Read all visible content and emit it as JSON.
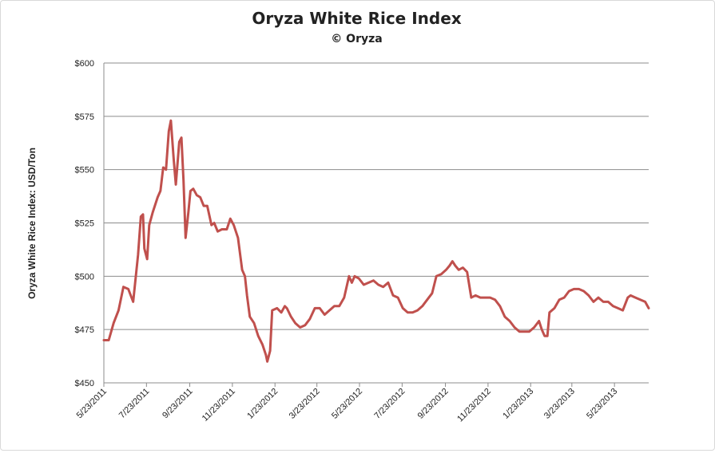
{
  "chart_data": {
    "type": "line",
    "title": "Oryza White Rice Index",
    "subtitle": "© Oryza",
    "ylabel": "Oryza White Rice Index: USD/Ton",
    "xlabel": "",
    "ylim": [
      450,
      600
    ],
    "y_ticks": [
      {
        "value": 450,
        "label": "$450"
      },
      {
        "value": 475,
        "label": "$475"
      },
      {
        "value": 500,
        "label": "$500"
      },
      {
        "value": 525,
        "label": "$525"
      },
      {
        "value": 550,
        "label": "$550"
      },
      {
        "value": 575,
        "label": "$575"
      },
      {
        "value": 600,
        "label": "$600"
      }
    ],
    "x_ticks": [
      "5/23/2011",
      "7/23/2011",
      "9/23/2011",
      "11/23/2011",
      "1/23/2012",
      "3/23/2012",
      "5/23/2012",
      "7/23/2012",
      "9/23/2012",
      "11/23/2012",
      "1/23/2013",
      "3/23/2013",
      "5/23/2013"
    ],
    "grid": "horizontal",
    "legend": "none",
    "colors": {
      "line": "#c0504d",
      "grid": "#8c8c8c",
      "axis": "#8c8c8c"
    },
    "series": [
      {
        "values": [
          [
            "5/23/2011",
            470
          ],
          [
            "5/30/2011",
            470
          ],
          [
            "6/6/2011",
            478
          ],
          [
            "6/13/2011",
            484
          ],
          [
            "6/20/2011",
            495
          ],
          [
            "6/27/2011",
            494
          ],
          [
            "7/4/2011",
            488
          ],
          [
            "7/11/2011",
            510
          ],
          [
            "7/15/2011",
            528
          ],
          [
            "7/18/2011",
            529
          ],
          [
            "7/20/2011",
            513
          ],
          [
            "7/24/2011",
            508
          ],
          [
            "7/27/2011",
            524
          ],
          [
            "8/1/2011",
            530
          ],
          [
            "8/8/2011",
            537
          ],
          [
            "8/12/2011",
            540
          ],
          [
            "8/16/2011",
            551
          ],
          [
            "8/20/2011",
            550
          ],
          [
            "8/24/2011",
            568
          ],
          [
            "8/27/2011",
            573
          ],
          [
            "8/31/2011",
            555
          ],
          [
            "9/3/2011",
            543
          ],
          [
            "9/8/2011",
            563
          ],
          [
            "9/11/2011",
            565
          ],
          [
            "9/14/2011",
            545
          ],
          [
            "9/17/2011",
            518
          ],
          [
            "9/21/2011",
            530
          ],
          [
            "9/24/2011",
            540
          ],
          [
            "9/28/2011",
            541
          ],
          [
            "10/3/2011",
            538
          ],
          [
            "10/8/2011",
            537
          ],
          [
            "10/13/2011",
            533
          ],
          [
            "10/18/2011",
            533
          ],
          [
            "10/24/2011",
            524
          ],
          [
            "10/28/2011",
            525
          ],
          [
            "11/2/2011",
            521
          ],
          [
            "11/8/2011",
            522
          ],
          [
            "11/15/2011",
            522
          ],
          [
            "11/20/2011",
            527
          ],
          [
            "11/25/2011",
            524
          ],
          [
            "12/1/2011",
            518
          ],
          [
            "12/7/2011",
            503
          ],
          [
            "12/11/2011",
            500
          ],
          [
            "12/14/2011",
            491
          ],
          [
            "12/18/2011",
            481
          ],
          [
            "12/24/2011",
            478
          ],
          [
            "12/30/2011",
            472
          ],
          [
            "1/5/2012",
            468
          ],
          [
            "1/10/2012",
            463
          ],
          [
            "1/12/2012",
            460
          ],
          [
            "1/16/2012",
            465
          ],
          [
            "1/19/2012",
            484
          ],
          [
            "1/26/2012",
            485
          ],
          [
            "2/1/2012",
            483
          ],
          [
            "2/6/2012",
            486
          ],
          [
            "2/9/2012",
            485
          ],
          [
            "2/15/2012",
            481
          ],
          [
            "2/21/2012",
            478
          ],
          [
            "2/28/2012",
            476
          ],
          [
            "3/6/2012",
            477
          ],
          [
            "3/13/2012",
            480
          ],
          [
            "3/20/2012",
            485
          ],
          [
            "3/27/2012",
            485
          ],
          [
            "4/3/2012",
            482
          ],
          [
            "4/10/2012",
            484
          ],
          [
            "4/17/2012",
            486
          ],
          [
            "4/24/2012",
            486
          ],
          [
            "5/1/2012",
            490
          ],
          [
            "5/8/2012",
            500
          ],
          [
            "5/12/2012",
            497
          ],
          [
            "5/16/2012",
            500
          ],
          [
            "5/22/2012",
            499
          ],
          [
            "5/29/2012",
            496
          ],
          [
            "6/5/2012",
            497
          ],
          [
            "6/12/2012",
            498
          ],
          [
            "6/19/2012",
            496
          ],
          [
            "6/26/2012",
            495
          ],
          [
            "7/3/2012",
            497
          ],
          [
            "7/10/2012",
            491
          ],
          [
            "7/17/2012",
            490
          ],
          [
            "7/24/2012",
            485
          ],
          [
            "7/31/2012",
            483
          ],
          [
            "8/7/2012",
            483
          ],
          [
            "8/14/2012",
            484
          ],
          [
            "8/21/2012",
            486
          ],
          [
            "8/28/2012",
            489
          ],
          [
            "9/4/2012",
            492
          ],
          [
            "9/10/2012",
            500
          ],
          [
            "9/17/2012",
            501
          ],
          [
            "9/24/2012",
            503
          ],
          [
            "9/29/2012",
            505
          ],
          [
            "10/3/2012",
            507
          ],
          [
            "10/7/2012",
            505
          ],
          [
            "10/12/2012",
            503
          ],
          [
            "10/18/2012",
            504
          ],
          [
            "10/24/2012",
            502
          ],
          [
            "10/30/2012",
            490
          ],
          [
            "11/5/2012",
            491
          ],
          [
            "11/12/2012",
            490
          ],
          [
            "11/19/2012",
            490
          ],
          [
            "11/26/2012",
            490
          ],
          [
            "12/3/2012",
            489
          ],
          [
            "12/10/2012",
            486
          ],
          [
            "12/17/2012",
            481
          ],
          [
            "12/24/2012",
            479
          ],
          [
            "12/31/2012",
            476
          ],
          [
            "1/7/2013",
            474
          ],
          [
            "1/14/2013",
            474
          ],
          [
            "1/21/2013",
            474
          ],
          [
            "1/28/2013",
            476
          ],
          [
            "2/4/2013",
            479
          ],
          [
            "2/8/2013",
            475
          ],
          [
            "2/12/2013",
            472
          ],
          [
            "2/16/2013",
            472
          ],
          [
            "2/19/2013",
            483
          ],
          [
            "2/26/2013",
            485
          ],
          [
            "3/5/2013",
            489
          ],
          [
            "3/12/2013",
            490
          ],
          [
            "3/19/2013",
            493
          ],
          [
            "3/26/2013",
            494
          ],
          [
            "4/2/2013",
            494
          ],
          [
            "4/9/2013",
            493
          ],
          [
            "4/16/2013",
            491
          ],
          [
            "4/23/2013",
            488
          ],
          [
            "4/30/2013",
            490
          ],
          [
            "5/7/2013",
            488
          ],
          [
            "5/14/2013",
            488
          ],
          [
            "5/21/2013",
            486
          ],
          [
            "5/28/2013",
            485
          ],
          [
            "6/4/2013",
            484
          ],
          [
            "6/11/2013",
            490
          ],
          [
            "6/15/2013",
            491
          ],
          [
            "6/22/2013",
            490
          ],
          [
            "6/29/2013",
            489
          ],
          [
            "7/6/2013",
            488
          ],
          [
            "7/11/2013",
            485
          ]
        ]
      }
    ]
  }
}
